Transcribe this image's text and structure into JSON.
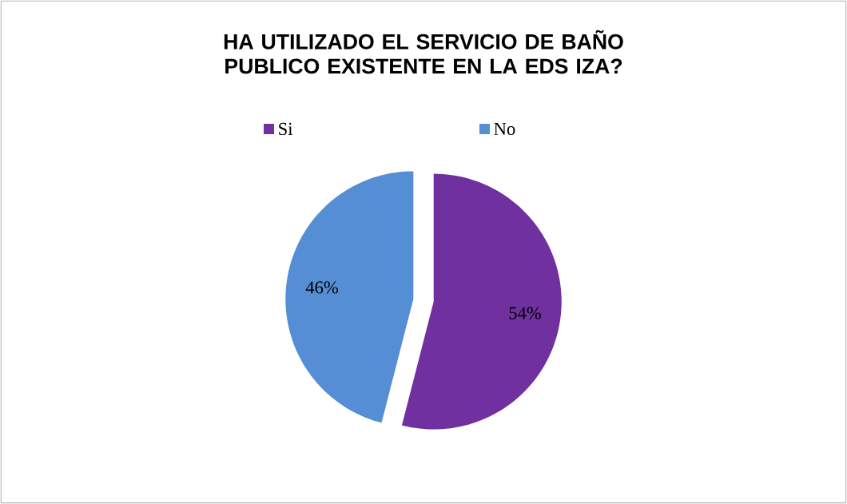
{
  "chart_data": {
    "type": "pie",
    "title": "HA UTILIZADO EL SERVICIO DE BAÑO PUBLICO EXISTENTE EN LA EDS IZA?",
    "categories": [
      "Si",
      "No"
    ],
    "values": [
      54,
      46
    ],
    "colors": [
      "#7030a0",
      "#558ed5"
    ],
    "value_labels": [
      "54%",
      "46%"
    ],
    "legend": "top"
  }
}
